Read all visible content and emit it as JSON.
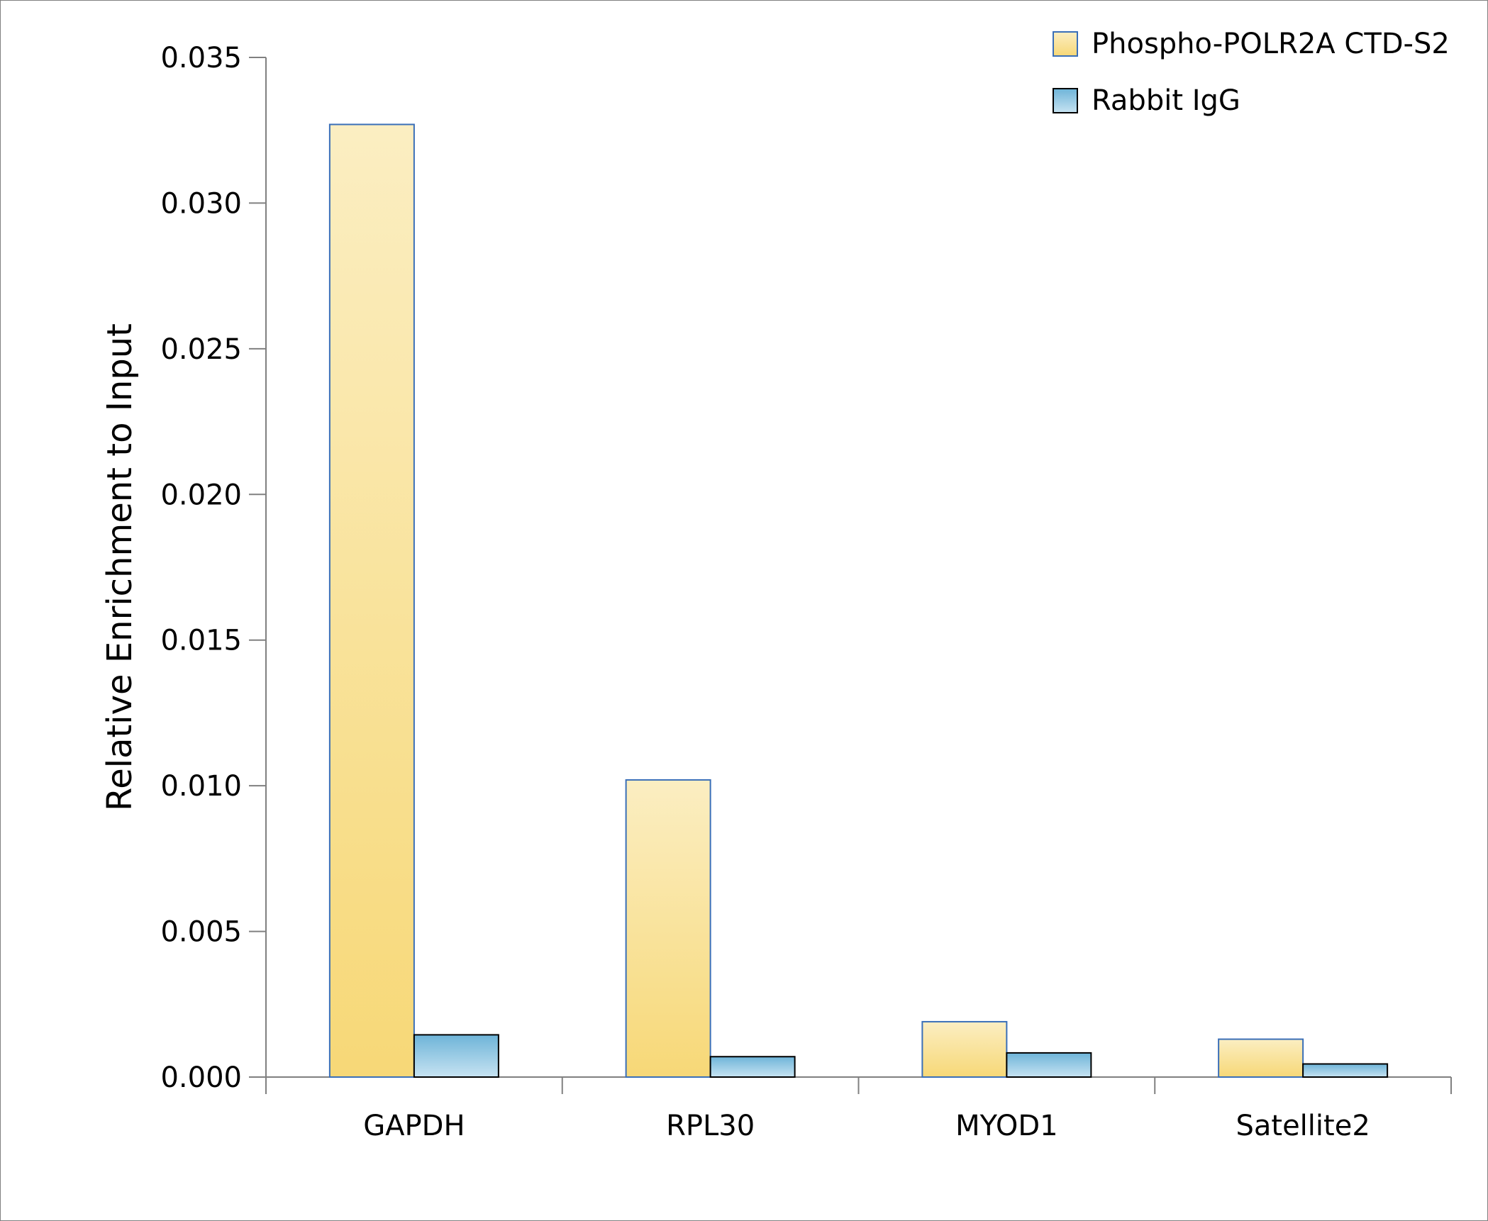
{
  "chart_data": {
    "type": "bar",
    "title": "",
    "xlabel": "",
    "ylabel": "Relative Enrichment to Input",
    "ylim": [
      0,
      0.035
    ],
    "yticks": [
      "0.000",
      "0.005",
      "0.010",
      "0.015",
      "0.020",
      "0.025",
      "0.030",
      "0.035"
    ],
    "categories": [
      "GAPDH",
      "RPL30",
      "MYOD1",
      "Satellite2"
    ],
    "series": [
      {
        "name": "Phospho-POLR2A CTD-S2",
        "values": [
          0.0327,
          0.0102,
          0.0019,
          0.0013
        ],
        "color_top": "#fbeec2",
        "color_bottom": "#f7d877",
        "stroke": "#3a6fb8"
      },
      {
        "name": "Rabbit IgG",
        "values": [
          0.00145,
          0.0007,
          0.00083,
          0.00045
        ],
        "color_top": "#6eb4d8",
        "color_bottom": "#c7e3f2",
        "stroke": "#000000"
      }
    ],
    "legend": "top-right",
    "grid": false
  }
}
